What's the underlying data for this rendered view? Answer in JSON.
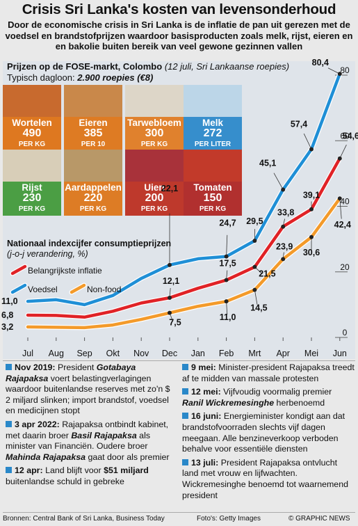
{
  "title": "Crisis Sri Lanka's kosten van levensonderhoud",
  "subtitle": "Door de economische crisis in Sri Lanka is de inflatie de pan uit gerezen met de voedsel en brandstofprijzen waardoor basisproducten zoals melk, rijst, eieren en en bakolie buiten bereik van veel gewone gezinnen vallen",
  "market": {
    "heading": "Prijzen op de FOSE-markt, Colombo",
    "note": "(12 juli, Sri Lankaanse roepies)",
    "wage_label": "Typisch dagloon:",
    "wage_value": "2.900 roepies (€8)",
    "items": [
      {
        "name": "Wortelen",
        "price": "490",
        "unit": "PER KG",
        "color": "#e07a1f"
      },
      {
        "name": "Eieren",
        "price": "385",
        "unit": "PER 10",
        "color": "#e07a1f"
      },
      {
        "name": "Tarwebloem",
        "price": "300",
        "unit": "PER KG",
        "color": "#e07a1f"
      },
      {
        "name": "Melk",
        "price": "272",
        "unit": "PER LITER",
        "color": "#2a88c9"
      },
      {
        "name": "Rijst",
        "price": "230",
        "unit": "PER KG",
        "color": "#3f9a3a"
      },
      {
        "name": "Aardappelen",
        "price": "220",
        "unit": "PER KG",
        "color": "#e07a1f"
      },
      {
        "name": "Uien",
        "price": "200",
        "unit": "PER KG",
        "color": "#c0392b"
      },
      {
        "name": "Tomaten",
        "price": "150",
        "unit": "PER KG",
        "color": "#b03030"
      }
    ]
  },
  "chart_data": {
    "type": "line",
    "title": "Nationaal indexcijfer consumptieprijzen",
    "subtitle": "(j-o-j verandering, %)",
    "categories": [
      "Jul",
      "Aug",
      "Sep",
      "Okt",
      "Nov",
      "Dec",
      "Jan",
      "Feb",
      "Mrt",
      "Apr",
      "Mei",
      "Jun"
    ],
    "ylim": [
      0,
      80
    ],
    "yticks": [
      "0",
      "20",
      "40",
      "60",
      "80"
    ],
    "grid": false,
    "legend": "top-left",
    "series": [
      {
        "name": "Belangrijkste inflatie",
        "color": "#e02226",
        "values": [
          6.8,
          6.7,
          6.2,
          8.0,
          10.5,
          12.1,
          15.0,
          17.5,
          21.5,
          33.8,
          39.1,
          54.6
        ]
      },
      {
        "name": "Voedsel",
        "color": "#1f8fd6",
        "values": [
          11.0,
          11.5,
          10.0,
          12.8,
          18.0,
          22.1,
          24.0,
          24.7,
          29.5,
          45.1,
          57.4,
          80.4
        ]
      },
      {
        "name": "Non-food",
        "color": "#f39a2a",
        "values": [
          3.2,
          3.1,
          3.0,
          3.8,
          5.5,
          7.5,
          9.5,
          11.0,
          14.5,
          23.9,
          30.6,
          42.4
        ]
      }
    ],
    "annotations": [
      {
        "label": "11,0",
        "series": 1,
        "index": 0
      },
      {
        "label": "6,8",
        "series": 0,
        "index": 0
      },
      {
        "label": "3,2",
        "series": 2,
        "index": 0
      },
      {
        "label": "22,1",
        "series": 1,
        "index": 5
      },
      {
        "label": "12,1",
        "series": 0,
        "index": 5
      },
      {
        "label": "7,5",
        "series": 2,
        "index": 5
      },
      {
        "label": "24,7",
        "series": 1,
        "index": 7
      },
      {
        "label": "17,5",
        "series": 0,
        "index": 7
      },
      {
        "label": "11,0",
        "series": 2,
        "index": 7
      },
      {
        "label": "29,5",
        "series": 1,
        "index": 8
      },
      {
        "label": "21,5",
        "series": 0,
        "index": 8
      },
      {
        "label": "14,5",
        "series": 2,
        "index": 8
      },
      {
        "label": "45,1",
        "series": 1,
        "index": 9
      },
      {
        "label": "33,8",
        "series": 0,
        "index": 9
      },
      {
        "label": "23,9",
        "series": 2,
        "index": 9
      },
      {
        "label": "57,4",
        "series": 1,
        "index": 10
      },
      {
        "label": "39,1",
        "series": 0,
        "index": 10
      },
      {
        "label": "30,6",
        "series": 2,
        "index": 10
      },
      {
        "label": "80,4",
        "series": 1,
        "index": 11
      },
      {
        "label": "54,6",
        "series": 0,
        "index": 11
      },
      {
        "label": "42,4",
        "series": 2,
        "index": 11
      }
    ]
  },
  "events_left": [
    {
      "date": "Nov 2019:",
      "parts": [
        [
          "t",
          " President "
        ],
        [
          "hl",
          "Gotabaya Rajapaksa"
        ],
        [
          "t",
          " voert belastingverlagingen waardoor buitenlandse reserves met zo'n $ 2 miljard slinken; import brandstof, voedsel en medicijnen stopt"
        ]
      ]
    },
    {
      "date": "3 apr 2022:",
      "parts": [
        [
          "t",
          " Rajapaksa ontbindt kabinet, met daarin broer "
        ],
        [
          "hl",
          "Basil Rajapaksa"
        ],
        [
          "t",
          " als minister van Financiën. Oudere broer "
        ],
        [
          "hl",
          "Mahinda Rajapaksa"
        ],
        [
          "t",
          " gaat door als premier"
        ]
      ]
    },
    {
      "date": "12 apr:",
      "parts": [
        [
          "t",
          " Land blijft voor "
        ],
        [
          "b",
          "$51 miljard"
        ],
        [
          "t",
          " buitenlandse schuld in gebreke"
        ]
      ]
    }
  ],
  "events_right": [
    {
      "date": "9 mei:",
      "parts": [
        [
          "t",
          " Minister-president Rajapaksa treedt af te midden van massale protesten"
        ]
      ]
    },
    {
      "date": "12 mei:",
      "parts": [
        [
          "t",
          " Vijfvoudig voormalig premier "
        ],
        [
          "hl",
          "Ranil Wickremesinghe"
        ],
        [
          "t",
          " herbenoemd"
        ]
      ]
    },
    {
      "date": "16 juni:",
      "parts": [
        [
          "t",
          " Energieminister kondigt aan dat brandstofvoorraden slechts vijf dagen meegaan. Alle benzineverkoop verboden behalve voor essentiële diensten"
        ]
      ]
    },
    {
      "date": "13 juli:",
      "parts": [
        [
          "t",
          " President Rajapaksa ontvlucht land met vrouw en lijfwachten. Wickremesinghe benoemd tot waarnemend president"
        ]
      ]
    }
  ],
  "footer": {
    "sources": "Bronnen: Central Bank of Sri Lanka, Business Today",
    "photo": "Foto's: Getty Images",
    "copyright": "© GRAPHIC NEWS"
  }
}
